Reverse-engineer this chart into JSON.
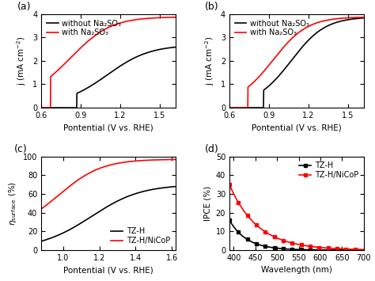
{
  "panel_a": {
    "title": "(a)",
    "xlabel": "Pontential (V vs. RHE)",
    "ylabel": "j (mA cm$^{-2}$)",
    "xlim": [
      0.6,
      1.62
    ],
    "ylim": [
      0,
      4
    ],
    "yticks": [
      0,
      1,
      2,
      3,
      4
    ],
    "xticks": [
      0.6,
      0.9,
      1.2,
      1.5
    ],
    "legend": [
      "without Na₂SO₃",
      "with Na₂SO₃"
    ],
    "colors": [
      "black",
      "red"
    ]
  },
  "panel_b": {
    "title": "(b)",
    "xlabel": "Pontential (V vs. RHE)",
    "ylabel": "j (mA cm$^{-2}$)",
    "xlim": [
      0.6,
      1.62
    ],
    "ylim": [
      0,
      4
    ],
    "yticks": [
      0,
      1,
      2,
      3,
      4
    ],
    "xticks": [
      0.6,
      0.9,
      1.2,
      1.5
    ],
    "legend": [
      "without Na₂SO₃",
      "with Na₂SO₃"
    ],
    "colors": [
      "black",
      "red"
    ]
  },
  "panel_c": {
    "title": "(c)",
    "xlabel": "Pontential (V vs. RHE)",
    "ylabel": "$\\eta_{surface}$ (%)",
    "xlim": [
      0.88,
      1.62
    ],
    "ylim": [
      0,
      100
    ],
    "yticks": [
      0,
      20,
      40,
      60,
      80,
      100
    ],
    "xticks": [
      1.0,
      1.2,
      1.4,
      1.6
    ],
    "legend": [
      "TZ-H",
      "TZ-H/NiCoP"
    ],
    "colors": [
      "black",
      "red"
    ]
  },
  "panel_d": {
    "title": "(d)",
    "xlabel": "Wavelength (nm)",
    "ylabel": "IPCE (%)",
    "xlim": [
      390,
      700
    ],
    "ylim": [
      0,
      50
    ],
    "yticks": [
      0,
      10,
      20,
      30,
      40,
      50
    ],
    "xticks": [
      400,
      450,
      500,
      550,
      600,
      650,
      700
    ],
    "legend": [
      "TZ-H",
      "TZ-H/NiCoP"
    ],
    "colors": [
      "black",
      "red"
    ]
  },
  "background_color": "#ffffff",
  "linewidth": 1.2,
  "fontsize_label": 7.5,
  "fontsize_tick": 7,
  "fontsize_legend": 7,
  "fontsize_panel": 9
}
